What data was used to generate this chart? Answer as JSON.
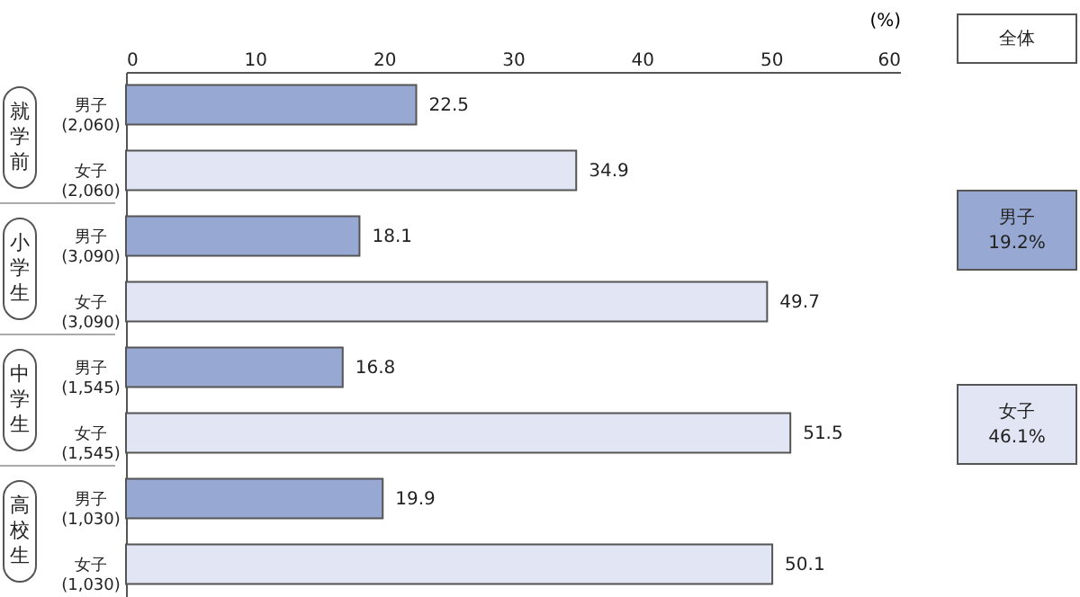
{
  "chart_data": {
    "type": "bar",
    "orientation": "horizontal",
    "xlabel": "(%)",
    "categories": [
      "男子\n(2,060)",
      "女子\n(2,060)",
      "男子\n(3,090)",
      "女子\n(3,090)",
      "男子\n(1,545)",
      "女子\n(1,545)",
      "男子\n(1,030)",
      "女子\n(1,030)"
    ],
    "values": [
      22.5,
      34.9,
      18.1,
      49.7,
      16.8,
      51.5,
      19.9,
      50.1
    ],
    "colors": [
      "#97a8d2",
      "#e2e6f4",
      "#97a8d2",
      "#e2e6f4",
      "#97a8d2",
      "#e2e6f4",
      "#97a8d2",
      "#e2e6f4"
    ],
    "xlim": [
      0,
      60
    ],
    "xticks": [
      0,
      10,
      20,
      30,
      40,
      50,
      60
    ],
    "grid": false,
    "data_labels": true,
    "annotations": [
      "就学前",
      "小学生",
      "中学生",
      "高校生",
      "全体",
      "男子\n19.2%",
      "女子\n46.1%"
    ]
  }
}
